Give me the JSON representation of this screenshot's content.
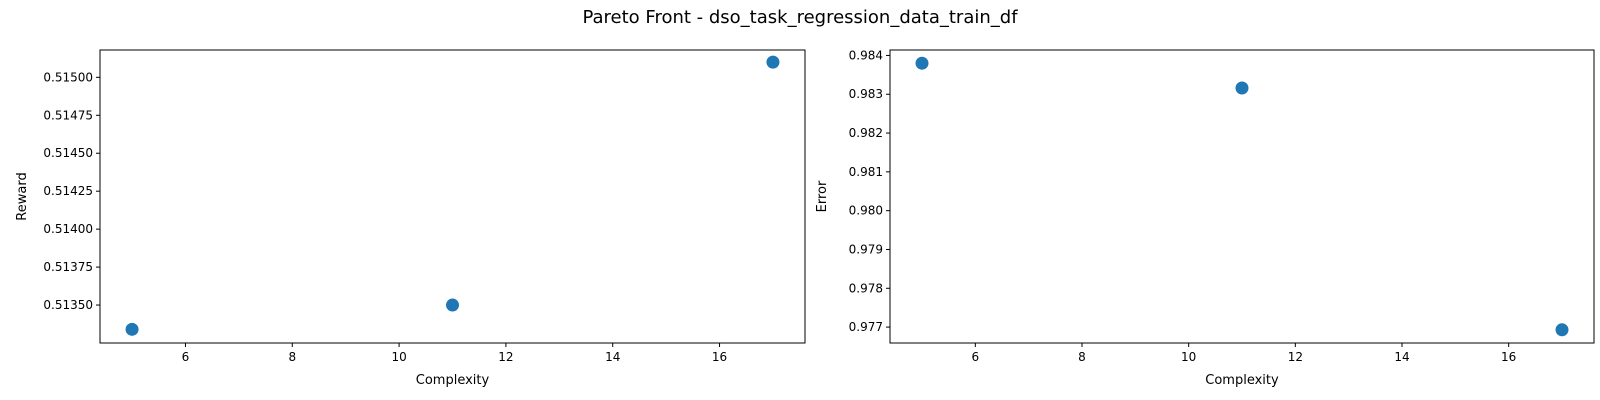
{
  "figure": {
    "title": "Pareto Front - dso_task_regression_data_train_df"
  },
  "colors": {
    "marker": "#1f77b4",
    "axis": "#000000",
    "background": "#ffffff"
  },
  "chart_data": [
    {
      "type": "scatter",
      "title": "",
      "xlabel": "Complexity",
      "ylabel": "Reward",
      "x": [
        5,
        11,
        17
      ],
      "y": [
        0.51334,
        0.5135,
        0.5151
      ],
      "xlim": [
        4.4,
        17.6
      ],
      "ylim": [
        0.51325,
        0.51518
      ],
      "xticks": [
        6,
        8,
        10,
        12,
        14,
        16
      ],
      "xtick_labels": [
        "6",
        "8",
        "10",
        "12",
        "14",
        "16"
      ],
      "yticks": [
        0.5135,
        0.51375,
        0.514,
        0.51425,
        0.5145,
        0.51475,
        0.515
      ],
      "ytick_labels": [
        "0.51350",
        "0.51375",
        "0.51400",
        "0.51425",
        "0.51450",
        "0.51475",
        "0.51500"
      ],
      "grid": false,
      "legend": "none"
    },
    {
      "type": "scatter",
      "title": "",
      "xlabel": "Complexity",
      "ylabel": "Error",
      "x": [
        5,
        11,
        17
      ],
      "y": [
        0.9838,
        0.98316,
        0.97693
      ],
      "xlim": [
        4.4,
        17.6
      ],
      "ylim": [
        0.97659,
        0.98414
      ],
      "xticks": [
        6,
        8,
        10,
        12,
        14,
        16
      ],
      "xtick_labels": [
        "6",
        "8",
        "10",
        "12",
        "14",
        "16"
      ],
      "yticks": [
        0.977,
        0.978,
        0.979,
        0.98,
        0.981,
        0.982,
        0.983,
        0.984
      ],
      "ytick_labels": [
        "0.977",
        "0.978",
        "0.979",
        "0.980",
        "0.981",
        "0.982",
        "0.983",
        "0.984"
      ],
      "grid": false,
      "legend": "none"
    }
  ]
}
